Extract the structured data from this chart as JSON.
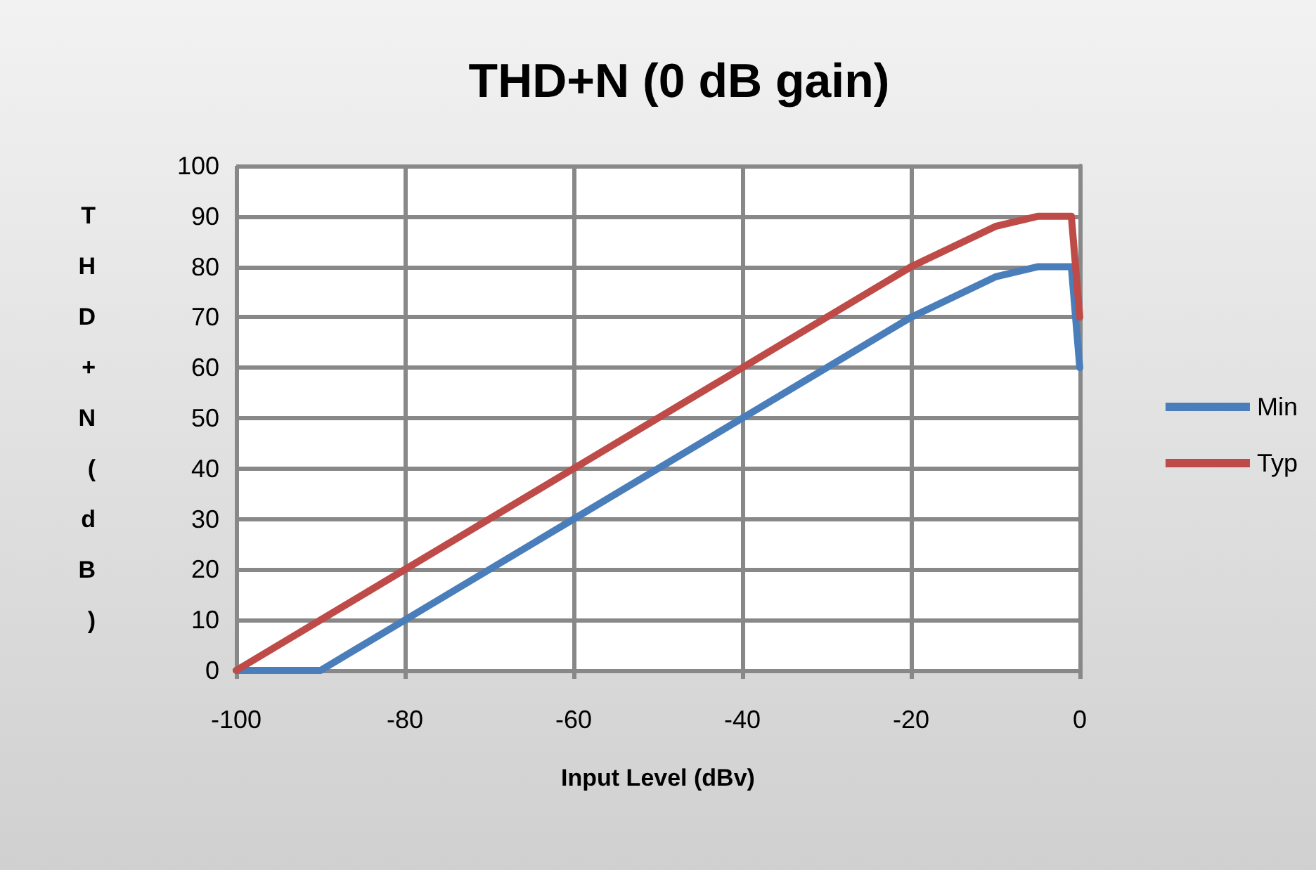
{
  "chart_data": {
    "type": "line",
    "title": "THD+N (0 dB gain)",
    "xlabel": "Input Level (dBv)",
    "ylabel": "THD+N (dB)",
    "series": [
      {
        "name": "Min",
        "color": "#4a7ebb",
        "x": [
          -100,
          -90,
          -80,
          -60,
          -40,
          -20,
          -10,
          -5,
          -1,
          0
        ],
        "values": [
          0,
          0,
          10,
          30,
          50,
          70,
          78,
          80,
          80,
          60
        ]
      },
      {
        "name": "Typ",
        "color": "#be4b48",
        "x": [
          -100,
          -80,
          -60,
          -40,
          -20,
          -10,
          -5,
          -1,
          0
        ],
        "values": [
          0,
          20,
          40,
          60,
          80,
          88,
          90,
          90,
          70
        ]
      }
    ],
    "xlim": [
      -100,
      0
    ],
    "xticks": [
      -100,
      -80,
      -60,
      -40,
      -20,
      0
    ],
    "ylim": [
      0,
      100
    ],
    "yticks": [
      0,
      10,
      20,
      30,
      40,
      50,
      60,
      70,
      80,
      90,
      100
    ],
    "grid": true,
    "legend": "right",
    "marker": "none",
    "line_style": "solid"
  }
}
